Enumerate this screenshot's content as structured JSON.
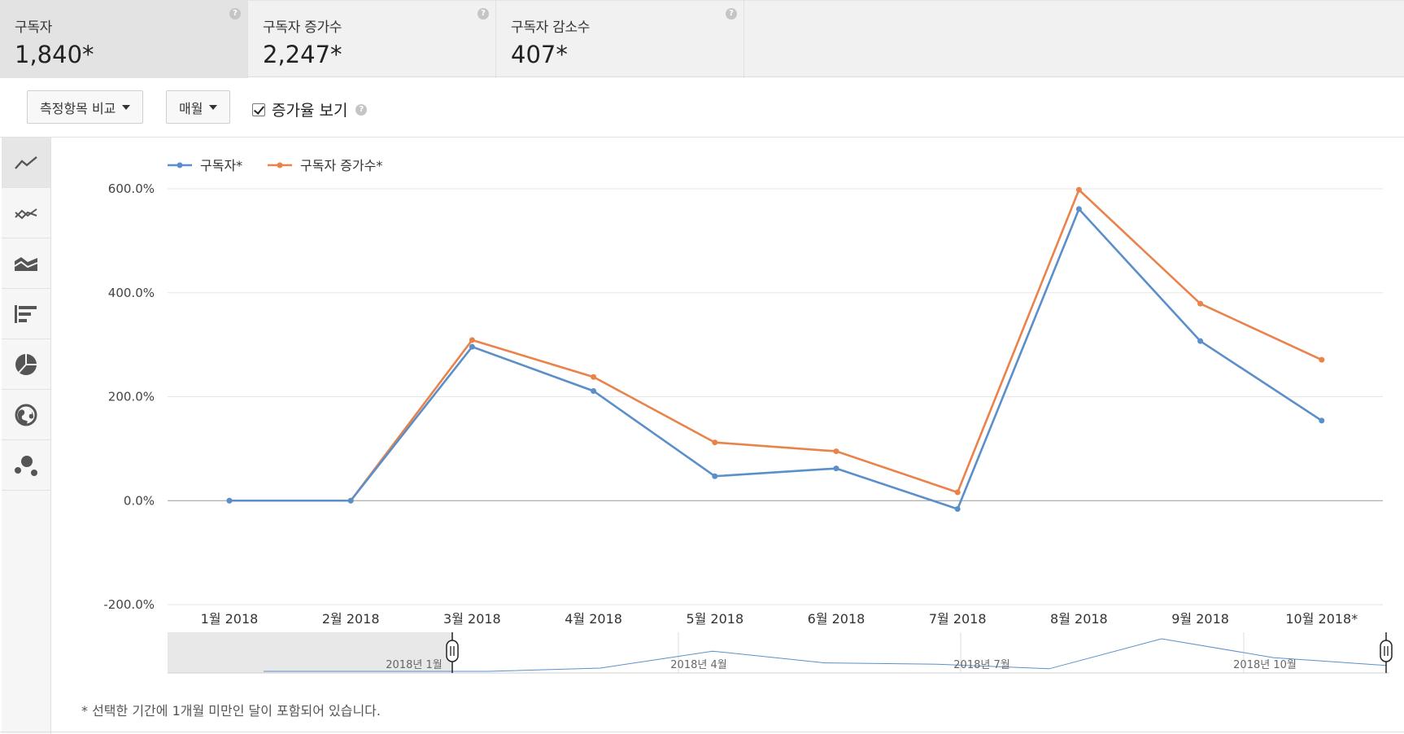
{
  "metrics": [
    {
      "label": "구독자",
      "value": "1,840*"
    },
    {
      "label": "구독자 증가수",
      "value": "2,247*"
    },
    {
      "label": "구독자 감소수",
      "value": "407*"
    }
  ],
  "help_glyph": "?",
  "toolbar": {
    "compare_label": "측정항목 비교",
    "period_label": "매월",
    "growth_checkbox_label": "증가율 보기",
    "growth_checked": true
  },
  "chart_types": [
    "line-chart-icon",
    "multi-line-chart-icon",
    "stacked-area-chart-icon",
    "bar-chart-icon",
    "pie-chart-icon",
    "map-chart-icon",
    "bubble-chart-icon"
  ],
  "chart_data": {
    "type": "line",
    "categories": [
      "1월 2018",
      "2월 2018",
      "3월 2018",
      "4월 2018",
      "5월 2018",
      "6월 2018",
      "7월 2018",
      "8월 2018",
      "9월 2018",
      "10월 2018*"
    ],
    "series": [
      {
        "name": "구독자*",
        "color": "#5b8fc9",
        "values": [
          0,
          0,
          296,
          211,
          47,
          62,
          -16,
          561,
          307,
          154
        ]
      },
      {
        "name": "구독자 증가수*",
        "color": "#e9834b",
        "values": [
          0,
          0,
          309,
          238,
          112,
          95,
          16,
          598,
          379,
          271
        ]
      }
    ],
    "y_ticks": [
      "600.0%",
      "400.0%",
      "200.0%",
      "0.0%",
      "-200.0%"
    ],
    "ylim": [
      -200,
      600
    ],
    "legend": "top-left"
  },
  "navigator": {
    "labels": [
      "2018년 1월",
      "2018년 4월",
      "2018년 7월",
      "2018년 10월"
    ],
    "overview_values": [
      0,
      0,
      0,
      5,
      31,
      13,
      11,
      4,
      50,
      21,
      9
    ]
  },
  "footnote": "* 선택한 기간에 1개월 미만인 달이 포함되어 있습니다."
}
